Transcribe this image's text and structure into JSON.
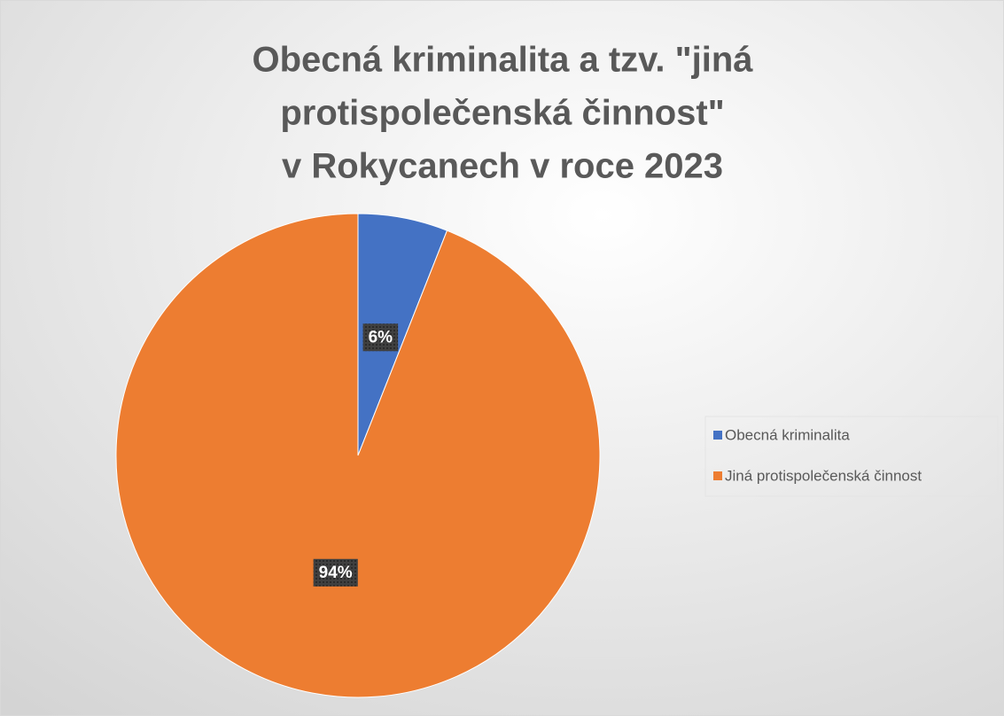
{
  "chart_data": {
    "type": "pie",
    "title": [
      "Obecná kriminalita a tzv. \"jiná",
      "protispolečenská činnost\"",
      "v Rokycanech v roce 2023"
    ],
    "categories": [
      "Obecná kriminalita",
      "Jiná protispolečenská činnost"
    ],
    "values": [
      6,
      94
    ],
    "value_labels": [
      "6%",
      "94%"
    ],
    "colors": [
      "#4472c4",
      "#ed7d31"
    ],
    "legend": "right"
  }
}
